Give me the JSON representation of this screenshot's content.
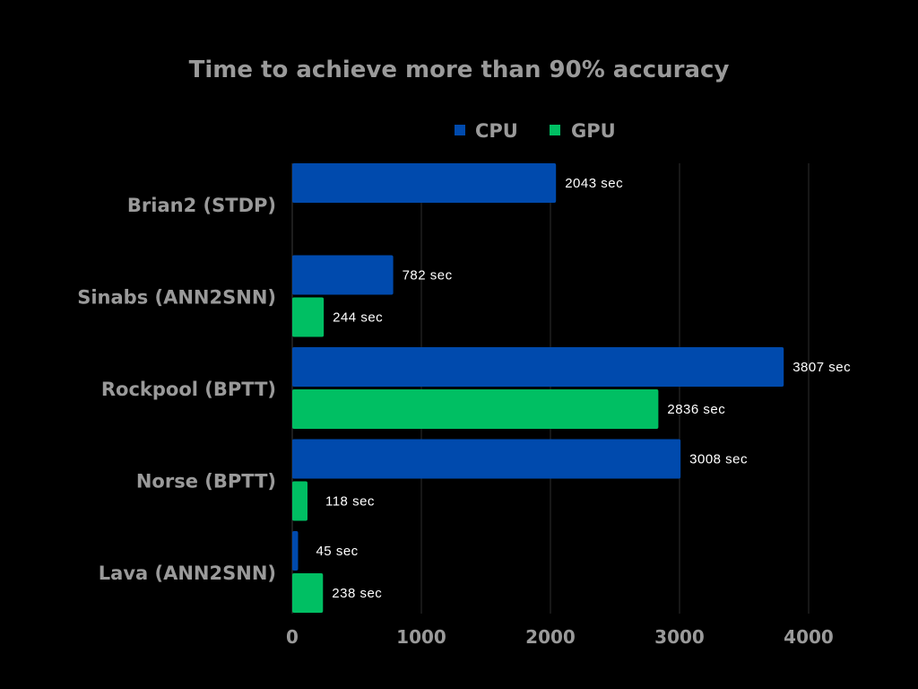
{
  "chart_data": {
    "type": "bar",
    "orientation": "horizontal",
    "title": "Time to achieve more than 90% accuracy",
    "categories": [
      "Brian2 (STDP)",
      "Sinabs (ANN2SNN)",
      "Rockpool (BPTT)",
      "Norse (BPTT)",
      "Lava (ANN2SNN)"
    ],
    "series": [
      {
        "name": "CPU",
        "color": "#004aad",
        "values": [
          2043,
          782,
          3807,
          3008,
          45
        ],
        "labels": [
          "2043 sec",
          "782 sec",
          "3807 sec",
          "3008 sec",
          "45 sec"
        ]
      },
      {
        "name": "GPU",
        "color": "#00bf63",
        "values": [
          null,
          244,
          2836,
          118,
          238
        ],
        "labels": [
          null,
          "244 sec",
          "2836 sec",
          "118 sec",
          "238 sec"
        ]
      }
    ],
    "xlim": [
      0,
      4000
    ],
    "xticks": [
      0,
      1000,
      2000,
      3000,
      4000
    ],
    "xtick_labels": [
      "0",
      "1000",
      "2000",
      "3000",
      "4000"
    ],
    "xlabel": "",
    "ylabel": "",
    "grid": true,
    "legend": "top-center"
  }
}
